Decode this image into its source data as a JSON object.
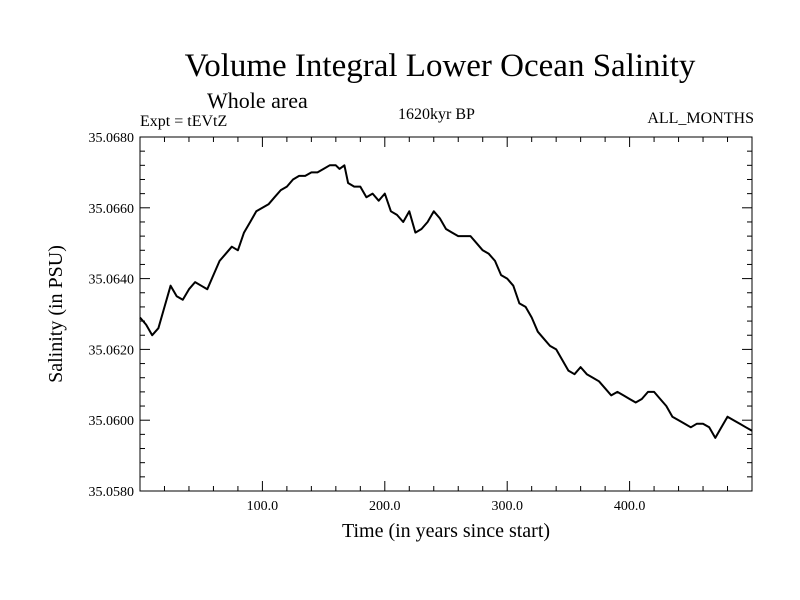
{
  "chart_data": {
    "type": "line",
    "title": "Volume Integral Lower Ocean Salinity",
    "subtitle": "Whole area",
    "experiment": "Expt = tEVtZ",
    "period": "1620kyr BP",
    "months": "ALL_MONTHS",
    "xlabel": "Time (in years since start)",
    "ylabel": "Salinity (in PSU)",
    "xlim": [
      0,
      500
    ],
    "ylim": [
      35.058,
      35.068
    ],
    "xticks": [
      "100.0",
      "200.0",
      "300.0",
      "400.0"
    ],
    "xtick_values": [
      100,
      200,
      300,
      400
    ],
    "yticks": [
      "35.0580",
      "35.0600",
      "35.0620",
      "35.0640",
      "35.0660",
      "35.0680"
    ],
    "ytick_values": [
      35.058,
      35.06,
      35.062,
      35.064,
      35.066,
      35.068
    ],
    "series": [
      {
        "name": "Salinity",
        "x": [
          0,
          5,
          10,
          15,
          20,
          25,
          30,
          35,
          40,
          45,
          50,
          55,
          60,
          65,
          70,
          75,
          80,
          85,
          90,
          95,
          100,
          105,
          110,
          115,
          120,
          125,
          130,
          135,
          140,
          145,
          150,
          155,
          160,
          163,
          167,
          170,
          175,
          180,
          185,
          190,
          195,
          200,
          205,
          210,
          215,
          220,
          225,
          230,
          235,
          240,
          245,
          250,
          255,
          260,
          265,
          270,
          275,
          280,
          285,
          290,
          295,
          300,
          305,
          310,
          315,
          320,
          325,
          330,
          335,
          340,
          345,
          350,
          355,
          360,
          365,
          370,
          375,
          380,
          385,
          390,
          395,
          400,
          405,
          410,
          415,
          420,
          425,
          430,
          435,
          440,
          445,
          450,
          455,
          460,
          465,
          470,
          475,
          480,
          485,
          490,
          495,
          500
        ],
        "values": [
          35.0629,
          35.0627,
          35.0624,
          35.0626,
          35.0632,
          35.0638,
          35.0635,
          35.0634,
          35.0637,
          35.0639,
          35.0638,
          35.0637,
          35.0641,
          35.0645,
          35.0647,
          35.0649,
          35.0648,
          35.0653,
          35.0656,
          35.0659,
          35.066,
          35.0661,
          35.0663,
          35.0665,
          35.0666,
          35.0668,
          35.0669,
          35.0669,
          35.067,
          35.067,
          35.0671,
          35.0672,
          35.0672,
          35.0671,
          35.0672,
          35.0667,
          35.0666,
          35.0666,
          35.0663,
          35.0664,
          35.0662,
          35.0664,
          35.0659,
          35.0658,
          35.0656,
          35.0659,
          35.0653,
          35.0654,
          35.0656,
          35.0659,
          35.0657,
          35.0654,
          35.0653,
          35.0652,
          35.0652,
          35.0652,
          35.065,
          35.0648,
          35.0647,
          35.0645,
          35.0641,
          35.064,
          35.0638,
          35.0633,
          35.0632,
          35.0629,
          35.0625,
          35.0623,
          35.0621,
          35.062,
          35.0617,
          35.0614,
          35.0613,
          35.0615,
          35.0613,
          35.0612,
          35.0611,
          35.0609,
          35.0607,
          35.0608,
          35.0607,
          35.0606,
          35.0605,
          35.0606,
          35.0608,
          35.0608,
          35.0606,
          35.0604,
          35.0601,
          35.06,
          35.0599,
          35.0598,
          35.0599,
          35.0599,
          35.0598,
          35.0595,
          35.0598,
          35.0601,
          35.06,
          35.0599,
          35.0598,
          35.0597
        ]
      }
    ]
  }
}
